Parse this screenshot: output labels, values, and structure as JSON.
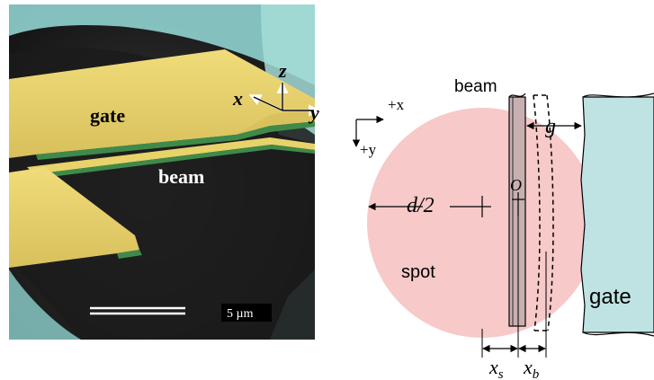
{
  "micrograph": {
    "label_gate": "gate",
    "label_beam": "beam",
    "axis_x": "x",
    "axis_y": "y",
    "axis_z": "z",
    "scale_bar_label": "5 µm"
  },
  "schematic": {
    "label_beam": "beam",
    "label_gate": "gate",
    "label_spot": "spot",
    "dir_plus_x": "+x",
    "dir_plus_y": "+y",
    "label_half_diameter": "d/2",
    "label_origin": "O",
    "label_gap": "g",
    "label_xs_base": "x",
    "label_xs_sub": "s",
    "label_xb_base": "x",
    "label_xb_sub": "b"
  },
  "colors": {
    "gold": "#e6cf6a",
    "green_edge": "#3f8a4a",
    "sem_dark": "#1c1c1c",
    "cyan_bg": "#8fd3d0",
    "spot_pink": "#f7c6c6",
    "gate_cyan": "#bfe3e3"
  }
}
